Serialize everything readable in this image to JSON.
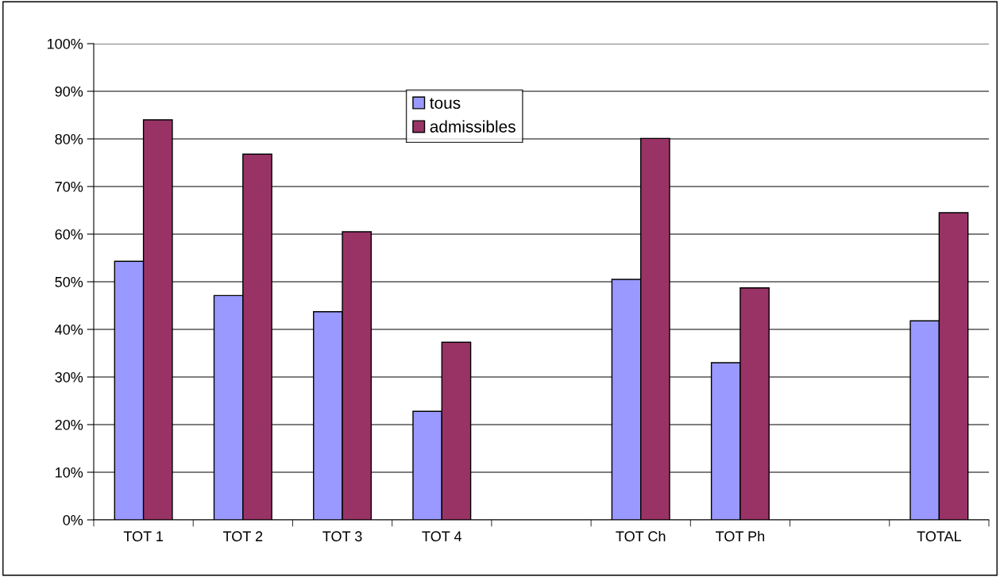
{
  "chart_data": {
    "type": "bar",
    "categories": [
      "TOT 1",
      "TOT 2",
      "TOT 3",
      "TOT 4",
      null,
      "TOT Ch",
      "TOT Ph",
      null,
      "TOTAL"
    ],
    "series": [
      {
        "name": "tous",
        "color": "#9999ff",
        "values": [
          54.3,
          47.1,
          43.7,
          22.8,
          null,
          50.5,
          33.0,
          null,
          41.8
        ]
      },
      {
        "name": "admissibles",
        "color": "#993366",
        "values": [
          84.0,
          76.8,
          60.5,
          37.3,
          null,
          80.1,
          48.7,
          null,
          64.5
        ]
      }
    ],
    "ylim": [
      0,
      100
    ],
    "yticks": [
      {
        "value": 0,
        "label": "0%"
      },
      {
        "value": 10,
        "label": "10%"
      },
      {
        "value": 20,
        "label": "20%"
      },
      {
        "value": 30,
        "label": "30%"
      },
      {
        "value": 40,
        "label": "40%"
      },
      {
        "value": 50,
        "label": "50%"
      },
      {
        "value": 60,
        "label": "60%"
      },
      {
        "value": 70,
        "label": "70%"
      },
      {
        "value": 80,
        "label": "80%"
      },
      {
        "value": 90,
        "label": "90%"
      },
      {
        "value": 100,
        "label": "100%"
      }
    ],
    "grid": "y",
    "legend": "top"
  }
}
